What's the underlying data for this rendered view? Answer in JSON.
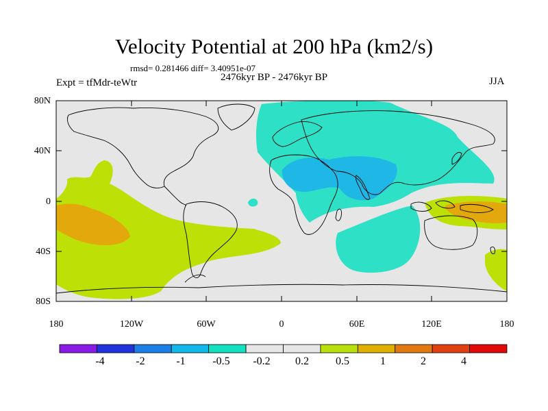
{
  "header": {
    "title": "Velocity Potential at 200 hPa (km2/s)",
    "stats": "rmsd= 0.281466 diff= 3.40951e-07",
    "period": "2476kyr BP - 2476kyr BP",
    "experiment": "Expt = tfMdr-teWtr",
    "season": "JJA"
  },
  "axes": {
    "y_labels": [
      "80N",
      "40N",
      "0",
      "40S",
      "80S"
    ],
    "x_labels": [
      "180",
      "120W",
      "60W",
      "0",
      "60E",
      "120E",
      "180"
    ]
  },
  "colorbar": {
    "colors": [
      "#8a1be6",
      "#2233dd",
      "#1b7fe6",
      "#12b8e8",
      "#12e0c0",
      "#e6e6e6",
      "#e6e6e6",
      "#b8e00a",
      "#e0b000",
      "#e07a10",
      "#e04010",
      "#e00a0a"
    ],
    "labels": [
      "-4",
      "-2",
      "-1",
      "-0.5",
      "-0.2",
      "0.2",
      "0.5",
      "1",
      "2",
      "4"
    ]
  },
  "legend_colors": {
    "ocean_background": "#e6e6e6",
    "neg_02": "#2de0c6",
    "neg_05": "#1fb8e6",
    "pos_02": "#bde006",
    "pos_05": "#e3a90c"
  }
}
